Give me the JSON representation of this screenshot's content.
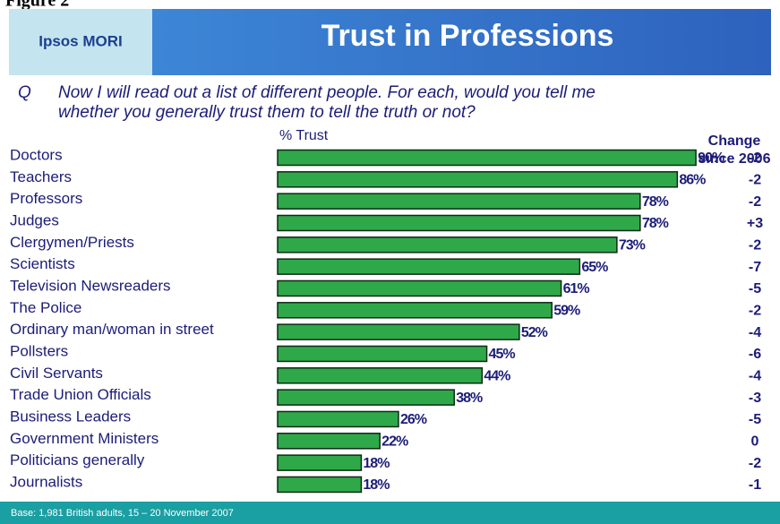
{
  "chart_data": {
    "type": "bar",
    "figure_label": "Figure 2",
    "brand": "Ipsos MORI",
    "title": "Trust in Professions",
    "question_label": "Q",
    "question": [
      "Now I will read out a list of different people.  For each, would you tell me",
      "whether you generally trust them to tell the truth or not?"
    ],
    "x_label": "% Trust",
    "change_title": [
      "Change",
      "since 2006"
    ],
    "categories": [
      "Doctors",
      "Teachers",
      "Professors",
      "Judges",
      "Clergymen/Priests",
      "Scientists",
      "Television Newsreaders",
      "The Police",
      "Ordinary man/woman in street",
      "Pollsters",
      "Civil Servants",
      "Trade Union Officials",
      "Business Leaders",
      "Government Ministers",
      "Politicians generally",
      "Journalists"
    ],
    "values": [
      90,
      86,
      78,
      78,
      73,
      65,
      61,
      59,
      52,
      45,
      44,
      38,
      26,
      22,
      18,
      18
    ],
    "value_labels": [
      "90%",
      "86%",
      "78%",
      "78%",
      "73%",
      "65%",
      "61%",
      "59%",
      "52%",
      "45%",
      "44%",
      "38%",
      "26%",
      "22%",
      "18%",
      "18%"
    ],
    "change": {
      "values": [
        -2,
        -2,
        -2,
        3,
        -2,
        -7,
        -5,
        -2,
        -4,
        -6,
        -4,
        -3,
        -5,
        0,
        -2,
        -1
      ],
      "value_labels": [
        "-2",
        "-2",
        "-2",
        "+3",
        "-2",
        "-7",
        "-5",
        "-2",
        "-4",
        "-6",
        "-4",
        "-3",
        "-5",
        "0",
        "-2",
        "-1"
      ]
    },
    "color": "#2fa84a",
    "xlim": [
      0,
      100
    ],
    "footnote": "Base: 1,981 British adults, 15 – 20 November 2007"
  }
}
